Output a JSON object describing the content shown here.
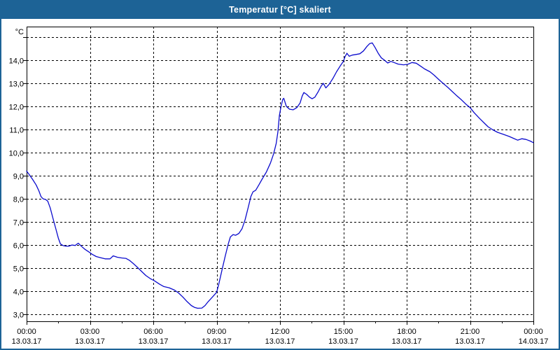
{
  "window": {
    "title": "Temperatur [°C] skaliert"
  },
  "colors": {
    "header_bg": "#1d6396",
    "window_border": "#1d6396",
    "line": "#0b0bcd",
    "grid": "#000000",
    "plot_bg": "#ffffff",
    "text": "#000000"
  },
  "chart_data": {
    "type": "line",
    "title": "Temperatur [°C] skaliert",
    "grid": true,
    "legend": false,
    "y_axis": {
      "unit": "°C",
      "min": 2.7,
      "max": 15.45,
      "gridline_values": [
        3,
        4,
        5,
        6,
        7,
        8,
        9,
        10,
        11,
        12,
        13,
        14,
        15
      ],
      "tick_labels": [
        "3,0",
        "4,0",
        "5,0",
        "6,0",
        "7,0",
        "8,0",
        "9,0",
        "10,0",
        "11,0",
        "12,0",
        "13,0",
        "14,0",
        ""
      ]
    },
    "x_axis": {
      "hours_span": 24,
      "minor_tick_hours": 1.5,
      "ticks": [
        {
          "t": 0,
          "time": "00:00",
          "date": "13.03.17"
        },
        {
          "t": 3,
          "time": "03:00",
          "date": "13.03.17"
        },
        {
          "t": 6,
          "time": "06:00",
          "date": "13.03.17"
        },
        {
          "t": 9,
          "time": "09:00",
          "date": "13.03.17"
        },
        {
          "t": 12,
          "time": "12:00",
          "date": "13.03.17"
        },
        {
          "t": 15,
          "time": "15:00",
          "date": "13.03.17"
        },
        {
          "t": 18,
          "time": "18:00",
          "date": "13.03.17"
        },
        {
          "t": 21,
          "time": "21:00",
          "date": "13.03.17"
        },
        {
          "t": 24,
          "time": "00:00",
          "date": "14.03.17"
        }
      ]
    },
    "series": [
      {
        "name": "Temperatur",
        "points": [
          [
            0,
            9.2
          ],
          [
            0.12,
            9.05
          ],
          [
            0.28,
            8.85
          ],
          [
            0.45,
            8.6
          ],
          [
            0.58,
            8.35
          ],
          [
            0.68,
            8.1
          ],
          [
            0.78,
            8.0
          ],
          [
            0.9,
            7.97
          ],
          [
            1.0,
            7.9
          ],
          [
            1.12,
            7.6
          ],
          [
            1.25,
            7.15
          ],
          [
            1.4,
            6.65
          ],
          [
            1.5,
            6.3
          ],
          [
            1.6,
            6.05
          ],
          [
            1.72,
            5.98
          ],
          [
            1.85,
            5.95
          ],
          [
            2.0,
            5.95
          ],
          [
            2.15,
            6.0
          ],
          [
            2.3,
            5.98
          ],
          [
            2.45,
            6.08
          ],
          [
            2.58,
            5.96
          ],
          [
            2.75,
            5.82
          ],
          [
            2.95,
            5.7
          ],
          [
            3.1,
            5.6
          ],
          [
            3.3,
            5.5
          ],
          [
            3.5,
            5.45
          ],
          [
            3.72,
            5.4
          ],
          [
            3.95,
            5.4
          ],
          [
            4.1,
            5.53
          ],
          [
            4.3,
            5.47
          ],
          [
            4.5,
            5.44
          ],
          [
            4.7,
            5.42
          ],
          [
            4.88,
            5.33
          ],
          [
            5.05,
            5.2
          ],
          [
            5.25,
            5.03
          ],
          [
            5.45,
            4.85
          ],
          [
            5.65,
            4.68
          ],
          [
            5.85,
            4.55
          ],
          [
            6.05,
            4.45
          ],
          [
            6.3,
            4.3
          ],
          [
            6.5,
            4.2
          ],
          [
            6.75,
            4.15
          ],
          [
            7.0,
            4.05
          ],
          [
            7.2,
            3.92
          ],
          [
            7.4,
            3.75
          ],
          [
            7.6,
            3.55
          ],
          [
            7.8,
            3.38
          ],
          [
            7.95,
            3.3
          ],
          [
            8.1,
            3.26
          ],
          [
            8.3,
            3.27
          ],
          [
            8.45,
            3.38
          ],
          [
            8.6,
            3.55
          ],
          [
            8.8,
            3.75
          ],
          [
            9.0,
            3.95
          ],
          [
            9.1,
            4.3
          ],
          [
            9.25,
            4.9
          ],
          [
            9.4,
            5.5
          ],
          [
            9.55,
            6.05
          ],
          [
            9.65,
            6.35
          ],
          [
            9.78,
            6.45
          ],
          [
            9.9,
            6.42
          ],
          [
            10.05,
            6.5
          ],
          [
            10.2,
            6.7
          ],
          [
            10.35,
            7.1
          ],
          [
            10.5,
            7.65
          ],
          [
            10.62,
            8.1
          ],
          [
            10.72,
            8.3
          ],
          [
            10.85,
            8.37
          ],
          [
            11.0,
            8.6
          ],
          [
            11.15,
            8.85
          ],
          [
            11.35,
            9.15
          ],
          [
            11.55,
            9.55
          ],
          [
            11.7,
            9.95
          ],
          [
            11.82,
            10.4
          ],
          [
            11.9,
            10.9
          ],
          [
            11.97,
            11.6
          ],
          [
            12.05,
            12.0
          ],
          [
            12.13,
            12.3
          ],
          [
            12.18,
            12.35
          ],
          [
            12.3,
            12.0
          ],
          [
            12.45,
            11.88
          ],
          [
            12.62,
            11.85
          ],
          [
            12.8,
            11.95
          ],
          [
            12.95,
            12.15
          ],
          [
            13.05,
            12.45
          ],
          [
            13.13,
            12.6
          ],
          [
            13.25,
            12.53
          ],
          [
            13.4,
            12.4
          ],
          [
            13.52,
            12.33
          ],
          [
            13.65,
            12.4
          ],
          [
            13.8,
            12.62
          ],
          [
            13.95,
            12.88
          ],
          [
            14.05,
            13.0
          ],
          [
            14.17,
            12.8
          ],
          [
            14.32,
            12.95
          ],
          [
            14.5,
            13.2
          ],
          [
            14.68,
            13.5
          ],
          [
            14.85,
            13.75
          ],
          [
            15.0,
            13.95
          ],
          [
            15.08,
            14.15
          ],
          [
            15.17,
            14.3
          ],
          [
            15.28,
            14.17
          ],
          [
            15.42,
            14.22
          ],
          [
            15.6,
            14.25
          ],
          [
            15.78,
            14.28
          ],
          [
            15.95,
            14.4
          ],
          [
            16.12,
            14.6
          ],
          [
            16.25,
            14.72
          ],
          [
            16.37,
            14.75
          ],
          [
            16.5,
            14.55
          ],
          [
            16.65,
            14.3
          ],
          [
            16.8,
            14.1
          ],
          [
            16.95,
            14.0
          ],
          [
            17.1,
            13.88
          ],
          [
            17.25,
            13.95
          ],
          [
            17.4,
            13.9
          ],
          [
            17.6,
            13.83
          ],
          [
            17.85,
            13.8
          ],
          [
            18.05,
            13.82
          ],
          [
            18.25,
            13.9
          ],
          [
            18.45,
            13.87
          ],
          [
            18.65,
            13.75
          ],
          [
            18.85,
            13.62
          ],
          [
            19.1,
            13.5
          ],
          [
            19.3,
            13.35
          ],
          [
            19.5,
            13.18
          ],
          [
            19.72,
            13.0
          ],
          [
            19.95,
            12.82
          ],
          [
            20.15,
            12.65
          ],
          [
            20.35,
            12.48
          ],
          [
            20.6,
            12.28
          ],
          [
            20.8,
            12.1
          ],
          [
            21.0,
            11.95
          ],
          [
            21.2,
            11.72
          ],
          [
            21.45,
            11.48
          ],
          [
            21.65,
            11.3
          ],
          [
            21.85,
            11.12
          ],
          [
            22.05,
            11.0
          ],
          [
            22.3,
            10.88
          ],
          [
            22.55,
            10.8
          ],
          [
            22.85,
            10.7
          ],
          [
            23.05,
            10.62
          ],
          [
            23.25,
            10.54
          ],
          [
            23.45,
            10.6
          ],
          [
            23.65,
            10.57
          ],
          [
            23.85,
            10.5
          ],
          [
            24.0,
            10.43
          ]
        ]
      }
    ]
  }
}
